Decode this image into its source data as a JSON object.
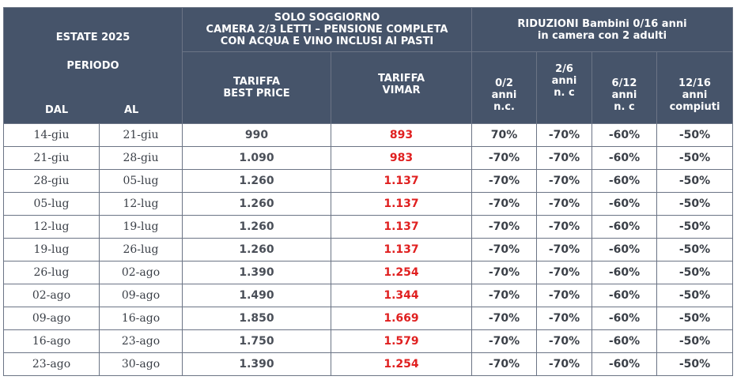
{
  "header": {
    "season": "ESTATE 2025",
    "period": "PERIODO",
    "dal": "DAL",
    "al": "AL",
    "solo_line1": "SOLO SOGGIORNO",
    "solo_line2": "CAMERA 2/3 LETTI – PENSIONE COMPLETA",
    "solo_line3": "CON ACQUA E VINO INCLUSI AI PASTI",
    "riduzioni_line1": "RIDUZIONI Bambini 0/16 anni",
    "riduzioni_line2": "in camera con 2 adulti",
    "tariffa_best_line1": "TARIFFA",
    "tariffa_best_line2": "BEST PRICE",
    "tariffa_vimar_line1": "TARIFFA",
    "tariffa_vimar_line2": "VIMAR",
    "age_0_2": [
      "0/2",
      "anni",
      "n.c."
    ],
    "age_2_6": [
      "2/6",
      "anni",
      "n. c"
    ],
    "age_6_12": [
      "6/12",
      "anni",
      "n. c"
    ],
    "age_12_16": [
      "12/16",
      "anni",
      "compiuti"
    ]
  },
  "colors": {
    "header_bg": "#46546a",
    "vimar_red": "#e02020"
  },
  "rows": [
    {
      "dal": "14-giu",
      "al": "21-giu",
      "best": "990",
      "vimar": "893",
      "r1": "70%",
      "r2": "-70%",
      "r3": "-60%",
      "r4": "-50%"
    },
    {
      "dal": "21-giu",
      "al": "28-giu",
      "best": "1.090",
      "vimar": "983",
      "r1": "-70%",
      "r2": "-70%",
      "r3": "-60%",
      "r4": "-50%"
    },
    {
      "dal": "28-giu",
      "al": "05-lug",
      "best": "1.260",
      "vimar": "1.137",
      "r1": "-70%",
      "r2": "-70%",
      "r3": "-60%",
      "r4": "-50%"
    },
    {
      "dal": "05-lug",
      "al": "12-lug",
      "best": "1.260",
      "vimar": "1.137",
      "r1": "-70%",
      "r2": "-70%",
      "r3": "-60%",
      "r4": "-50%"
    },
    {
      "dal": "12-lug",
      "al": "19-lug",
      "best": "1.260",
      "vimar": "1.137",
      "r1": "-70%",
      "r2": "-70%",
      "r3": "-60%",
      "r4": "-50%"
    },
    {
      "dal": "19-lug",
      "al": "26-lug",
      "best": "1.260",
      "vimar": "1.137",
      "r1": "-70%",
      "r2": "-70%",
      "r3": "-60%",
      "r4": "-50%"
    },
    {
      "dal": "26-lug",
      "al": "02-ago",
      "best": "1.390",
      "vimar": "1.254",
      "r1": "-70%",
      "r2": "-70%",
      "r3": "-60%",
      "r4": "-50%"
    },
    {
      "dal": "02-ago",
      "al": "09-ago",
      "best": "1.490",
      "vimar": "1.344",
      "r1": "-70%",
      "r2": "-70%",
      "r3": "-60%",
      "r4": "-50%"
    },
    {
      "dal": "09-ago",
      "al": "16-ago",
      "best": "1.850",
      "vimar": "1.669",
      "r1": "-70%",
      "r2": "-70%",
      "r3": "-60%",
      "r4": "-50%"
    },
    {
      "dal": "16-ago",
      "al": "23-ago",
      "best": "1.750",
      "vimar": "1.579",
      "r1": "-70%",
      "r2": "-70%",
      "r3": "-60%",
      "r4": "-50%"
    },
    {
      "dal": "23-ago",
      "al": "30-ago",
      "best": "1.390",
      "vimar": "1.254",
      "r1": "-70%",
      "r2": "-70%",
      "r3": "-60%",
      "r4": "-50%"
    }
  ]
}
